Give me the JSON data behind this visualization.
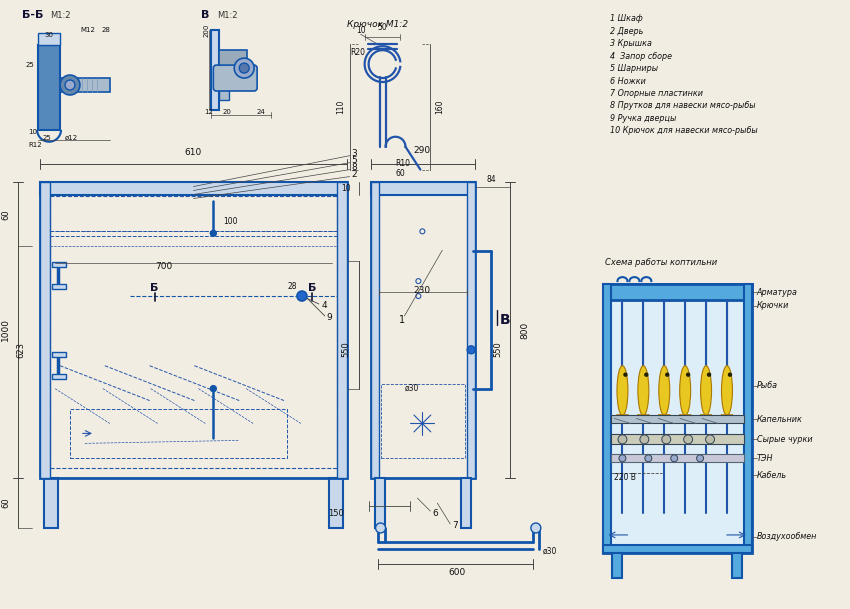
{
  "bg_color": "#f2ede3",
  "lc": "#2255aa",
  "frd": "#1155aa",
  "fr": "#4499cc",
  "dc": "#444444",
  "fish_color": "#e8c820",
  "title_schema": "Схема работы коптильни",
  "labels_schema": [
    "Арматура",
    "Крючки",
    "Рыба",
    "Капельник",
    "Сырые чурки",
    "ТЭН",
    "Кабель",
    "Воздухообмен"
  ],
  "legend_items": [
    "1 Шкаф",
    "2 Дверь",
    "3 Крышка",
    "4  Запор сборе",
    "5 Шарниры",
    "6 Ножки",
    "7 Опорные пластинки",
    "8 Прутков для навески мясо-рыбы",
    "9 Ручка дверцы",
    "10 Крючок для навески мясо-рыбы"
  ],
  "section_bb": "Б-Б",
  "section_bb_scale": "М1:2",
  "section_v": "В",
  "section_v_scale": "М1:2",
  "section_hook": "Крючок М1:2"
}
